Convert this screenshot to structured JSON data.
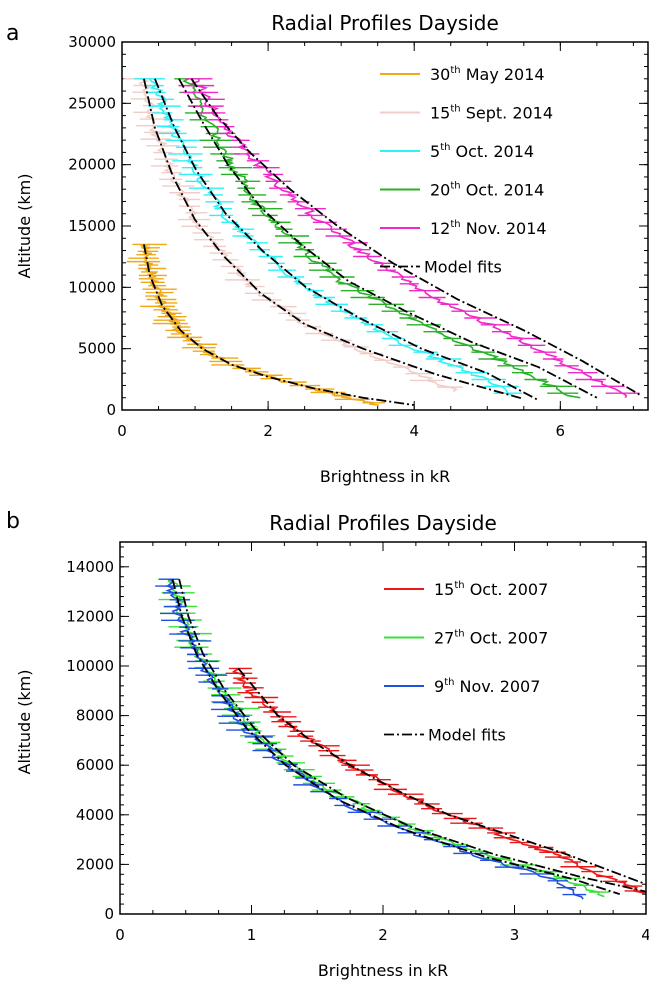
{
  "chart_data": [
    {
      "panel": "a",
      "type": "line",
      "title": "Radial Profiles Dayside",
      "xlabel": "Brightness in kR",
      "ylabel": "Altitude (km)",
      "xlim": [
        0,
        7.2
      ],
      "ylim": [
        0,
        30000
      ],
      "xticks": [
        0,
        2,
        4,
        6
      ],
      "yticks": [
        0,
        5000,
        10000,
        15000,
        20000,
        25000,
        30000
      ],
      "legend_position": "top-right",
      "series": [
        {
          "day": "30",
          "sup": "th",
          "rest": " May 2014",
          "color": "#f0a818",
          "x": [
            0.32,
            0.4,
            0.55,
            0.8,
            1.1,
            1.5,
            2.0,
            2.6,
            3.1,
            3.5
          ],
          "y": [
            13500,
            11000,
            8500,
            6500,
            5000,
            3700,
            2700,
            1800,
            1000,
            400
          ]
        },
        {
          "day": "15",
          "sup": "th",
          "rest": " Sept. 2014",
          "color": "#f0cdc8",
          "x": [
            0.3,
            0.45,
            0.7,
            1.0,
            1.4,
            1.9,
            2.5,
            3.2,
            4.0,
            4.6
          ],
          "y": [
            27000,
            23000,
            19000,
            15500,
            12500,
            9500,
            7000,
            5000,
            3000,
            1500
          ]
        },
        {
          "day": "5",
          "sup": "th",
          "rest": " Oct. 2014",
          "color": "#30f0f8",
          "x": [
            0.4,
            0.7,
            1.0,
            1.4,
            1.9,
            2.5,
            3.2,
            4.0,
            4.8,
            5.4
          ],
          "y": [
            27000,
            23000,
            19500,
            16000,
            13000,
            10000,
            7500,
            5000,
            3000,
            1000
          ]
        },
        {
          "day": "20",
          "sup": "th",
          "rest": " Oct. 2014",
          "color": "#28b028",
          "x": [
            0.9,
            1.2,
            1.5,
            1.9,
            2.4,
            3.0,
            3.8,
            4.6,
            5.4,
            6.2
          ],
          "y": [
            27000,
            23500,
            20000,
            16500,
            13500,
            10500,
            8000,
            5500,
            3500,
            1000
          ]
        },
        {
          "day": "12",
          "sup": "th",
          "rest": " Nov. 2014",
          "color": "#f028c8",
          "x": [
            1.0,
            1.3,
            1.7,
            2.2,
            2.8,
            3.5,
            4.3,
            5.2,
            6.0,
            6.9
          ],
          "y": [
            27000,
            24000,
            21000,
            18000,
            15000,
            12000,
            9000,
            6500,
            4000,
            1000
          ]
        }
      ],
      "model_fit_label": "Model fits",
      "model_fits": [
        {
          "x": [
            0.3,
            0.38,
            0.55,
            0.8,
            1.1,
            1.5,
            2.0,
            2.6,
            3.3,
            4.0
          ],
          "y": [
            13500,
            11000,
            8500,
            6500,
            5000,
            3700,
            2700,
            1800,
            1000,
            400
          ]
        },
        {
          "x": [
            0.3,
            0.45,
            0.7,
            1.0,
            1.4,
            1.9,
            2.5,
            3.3,
            4.3,
            5.5
          ],
          "y": [
            27000,
            23000,
            19000,
            15500,
            12500,
            9500,
            7000,
            5000,
            2900,
            900
          ]
        },
        {
          "x": [
            0.45,
            0.72,
            1.02,
            1.42,
            1.92,
            2.52,
            3.25,
            4.1,
            5.0,
            5.7
          ],
          "y": [
            27000,
            23000,
            19500,
            16000,
            13000,
            10000,
            7500,
            5000,
            3000,
            800
          ]
        },
        {
          "x": [
            0.78,
            1.1,
            1.45,
            1.9,
            2.45,
            3.1,
            3.9,
            4.8,
            5.7,
            6.5
          ],
          "y": [
            27000,
            23500,
            20000,
            16500,
            13500,
            10500,
            8000,
            5500,
            3500,
            1000
          ]
        },
        {
          "x": [
            0.95,
            1.3,
            1.75,
            2.3,
            2.95,
            3.7,
            4.6,
            5.5,
            6.3,
            7.1
          ],
          "y": [
            27000,
            24000,
            21000,
            18000,
            15000,
            12000,
            9000,
            6500,
            4000,
            1200
          ]
        }
      ]
    },
    {
      "panel": "b",
      "type": "line",
      "title": "Radial Profiles Dayside",
      "xlabel": "Brightness in kR",
      "ylabel": "Altitude (km)",
      "xlim": [
        0,
        4
      ],
      "ylim": [
        0,
        15000
      ],
      "xticks": [
        0,
        1,
        2,
        3,
        4
      ],
      "yticks": [
        0,
        2000,
        4000,
        6000,
        8000,
        10000,
        12000,
        14000
      ],
      "legend_position": "top-right",
      "series": [
        {
          "day": "15",
          "sup": "th",
          "rest": " Oct. 2007",
          "color": "#e81818",
          "x": [
            0.88,
            1.0,
            1.2,
            1.45,
            1.75,
            2.1,
            2.5,
            2.9,
            3.3,
            3.7,
            4.0
          ],
          "y": [
            9900,
            9000,
            8000,
            7000,
            6000,
            5000,
            4000,
            3200,
            2400,
            1500,
            800
          ]
        },
        {
          "day": "27",
          "sup": "th",
          "rest": " Oct. 2007",
          "color": "#38e038",
          "x": [
            0.4,
            0.48,
            0.6,
            0.78,
            1.0,
            1.3,
            1.7,
            2.2,
            2.8,
            3.4,
            3.7
          ],
          "y": [
            13500,
            12000,
            10500,
            9000,
            7500,
            6000,
            4700,
            3500,
            2400,
            1400,
            700
          ]
        },
        {
          "day": "9",
          "sup": "th",
          "rest": " Nov. 2007",
          "color": "#2050e0",
          "x": [
            0.38,
            0.45,
            0.58,
            0.75,
            0.95,
            1.25,
            1.65,
            2.15,
            2.75,
            3.3,
            3.5
          ],
          "y": [
            13500,
            12000,
            10500,
            9000,
            7500,
            6000,
            4600,
            3400,
            2300,
            1400,
            600
          ]
        }
      ],
      "model_fit_label": "Model fits",
      "model_fits": [
        {
          "x": [
            0.9,
            1.2,
            1.45,
            1.75,
            2.1,
            2.5,
            2.95,
            3.4,
            3.8,
            4.0
          ],
          "y": [
            9900,
            8000,
            7000,
            6000,
            5000,
            4000,
            3200,
            2400,
            1600,
            1200
          ]
        },
        {
          "x": [
            0.45,
            0.52,
            0.63,
            0.8,
            1.02,
            1.32,
            1.72,
            2.22,
            2.85,
            3.5,
            4.0
          ],
          "y": [
            13500,
            12000,
            10500,
            9000,
            7500,
            6000,
            4700,
            3500,
            2400,
            1500,
            900
          ]
        },
        {
          "x": [
            0.4,
            0.47,
            0.58,
            0.75,
            0.96,
            1.26,
            1.66,
            2.16,
            2.78,
            3.45,
            3.8
          ],
          "y": [
            13500,
            12000,
            10500,
            9000,
            7500,
            6000,
            4600,
            3400,
            2300,
            1400,
            800
          ]
        }
      ]
    }
  ]
}
